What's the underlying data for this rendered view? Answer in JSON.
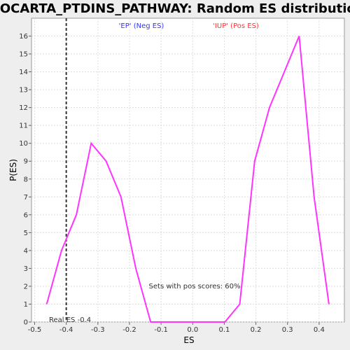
{
  "chart_data": {
    "type": "line",
    "title": "BIOCARTA_PTDINS_PATHWAY: Random ES distribution",
    "xlabel": "ES",
    "ylabel": "P(ES)",
    "xlim": [
      -0.51,
      0.48
    ],
    "ylim": [
      0,
      17
    ],
    "x_ticks": [
      "-0.5",
      "-0.4",
      "-0.3",
      "-0.2",
      "-0.1",
      "0.0",
      "0.1",
      "0.2",
      "0.3",
      "0.4"
    ],
    "y_ticks": [
      "0",
      "1",
      "2",
      "3",
      "4",
      "5",
      "6",
      "7",
      "8",
      "9",
      "10",
      "11",
      "12",
      "13",
      "14",
      "15",
      "16"
    ],
    "grid": true,
    "series": [
      {
        "name": "Random ES distribution",
        "color": "#ff33ff",
        "x": [
          -0.462,
          -0.415,
          -0.368,
          -0.321,
          -0.274,
          -0.227,
          -0.18,
          -0.133,
          -0.086,
          -0.039,
          0.008,
          0.055,
          0.102,
          0.149,
          0.196,
          0.243,
          0.29,
          0.337,
          0.384,
          0.431
        ],
        "y": [
          1,
          4,
          6,
          10,
          9,
          7,
          3,
          0,
          0,
          0,
          0,
          0,
          0,
          1,
          9,
          12,
          14,
          16,
          7,
          1
        ]
      }
    ],
    "real_es": {
      "value": -0.4,
      "label": "Real ES -0.4"
    },
    "annotations": {
      "neg_label": "'EP' (Neg ES)",
      "neg_color": "#3333ff",
      "pos_label": "'IUP' (Pos ES)",
      "pos_color": "#ff3333",
      "pos_scores_text": "Sets with pos scores: 60%"
    }
  }
}
